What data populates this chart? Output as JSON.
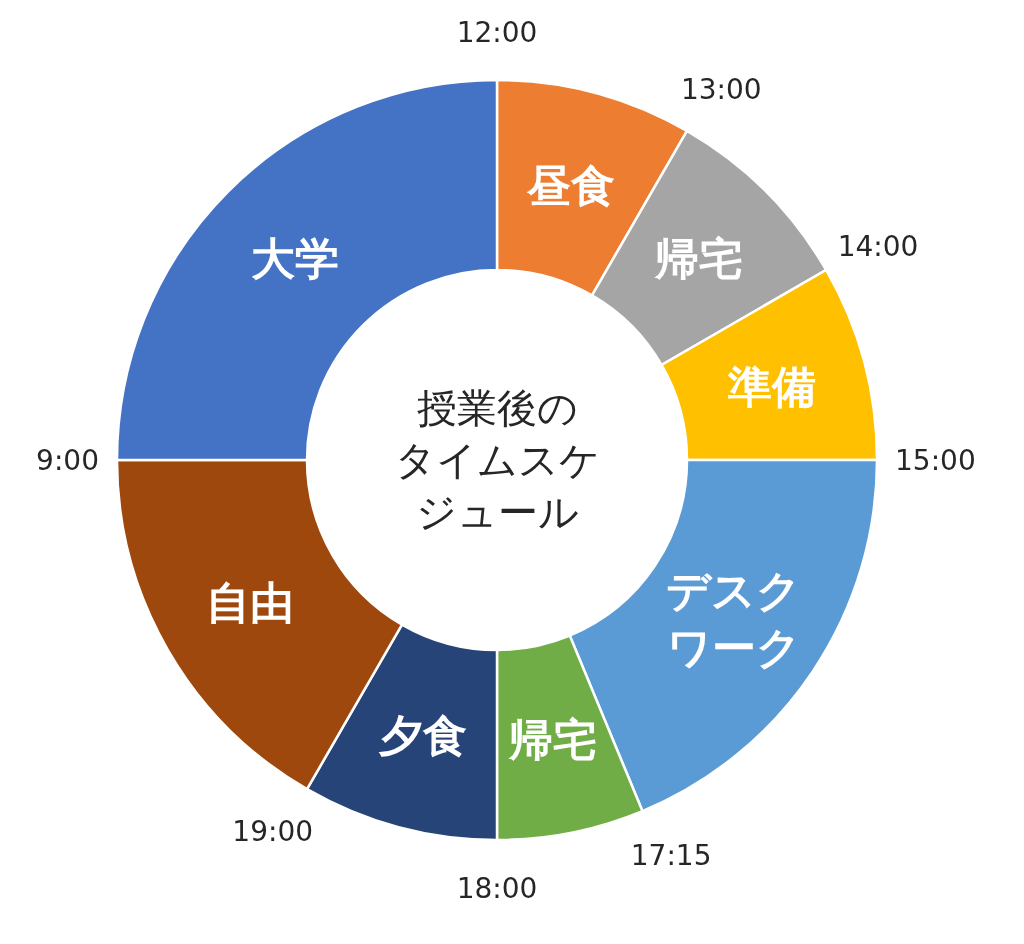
{
  "chart_data": {
    "type": "donut",
    "title": "授業後のタイムスケジュール",
    "categories": [
      "昼食",
      "帰宅",
      "準備",
      "デスクワーク",
      "帰宅",
      "夕食",
      "自由",
      "大学"
    ],
    "values": [
      8.333,
      8.333,
      8.333,
      18.75,
      6.25,
      8.333,
      16.667,
      25
    ],
    "colors": [
      "#ed7d31",
      "#a5a5a5",
      "#ffc000",
      "#5b9bd5",
      "#70ad47",
      "#264478",
      "#9e480e",
      "#4472c4"
    ],
    "annotations": [
      "12:00",
      "13:00",
      "14:00",
      "15:00",
      "17:15",
      "18:00",
      "19:00",
      "9:00"
    ],
    "legend": false
  }
}
